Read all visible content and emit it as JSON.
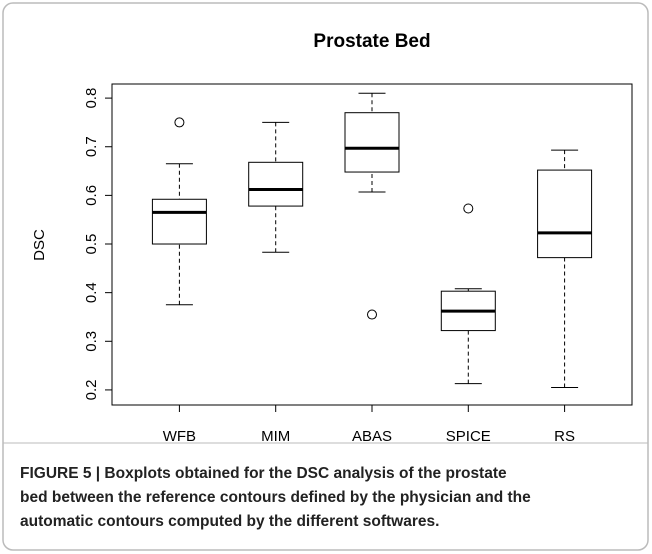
{
  "chart_data": {
    "type": "boxplot",
    "title": "Prostate Bed",
    "y_label": "DSC",
    "categories": [
      "WFB",
      "MIM",
      "ABAS",
      "SPICE",
      "RS"
    ],
    "boxes": [
      {
        "min": 0.375,
        "q1": 0.5,
        "median": 0.565,
        "q3": 0.592,
        "max": 0.665,
        "outliers": [
          0.75
        ]
      },
      {
        "min": 0.483,
        "q1": 0.578,
        "median": 0.612,
        "q3": 0.668,
        "max": 0.75
      },
      {
        "min": 0.607,
        "q1": 0.648,
        "median": 0.697,
        "q3": 0.77,
        "max": 0.81,
        "outliers": [
          0.355
        ]
      },
      {
        "min": 0.213,
        "q1": 0.322,
        "median": 0.362,
        "q3": 0.403,
        "max": 0.408,
        "outliers": [
          0.573
        ]
      },
      {
        "min": 0.205,
        "q1": 0.472,
        "median": 0.523,
        "q3": 0.652,
        "max": 0.693
      }
    ],
    "ylim": [
      0.169,
      0.829
    ],
    "yticks": [
      0.2,
      0.3,
      0.4,
      0.5,
      0.6,
      0.7,
      0.8
    ]
  },
  "caption": {
    "lines": [
      "FIGURE 5 | Boxplots obtained for the DSC analysis of the prostate",
      "bed between the reference contours defined by the physician and the",
      "automatic contours computed by the different softwares."
    ]
  }
}
